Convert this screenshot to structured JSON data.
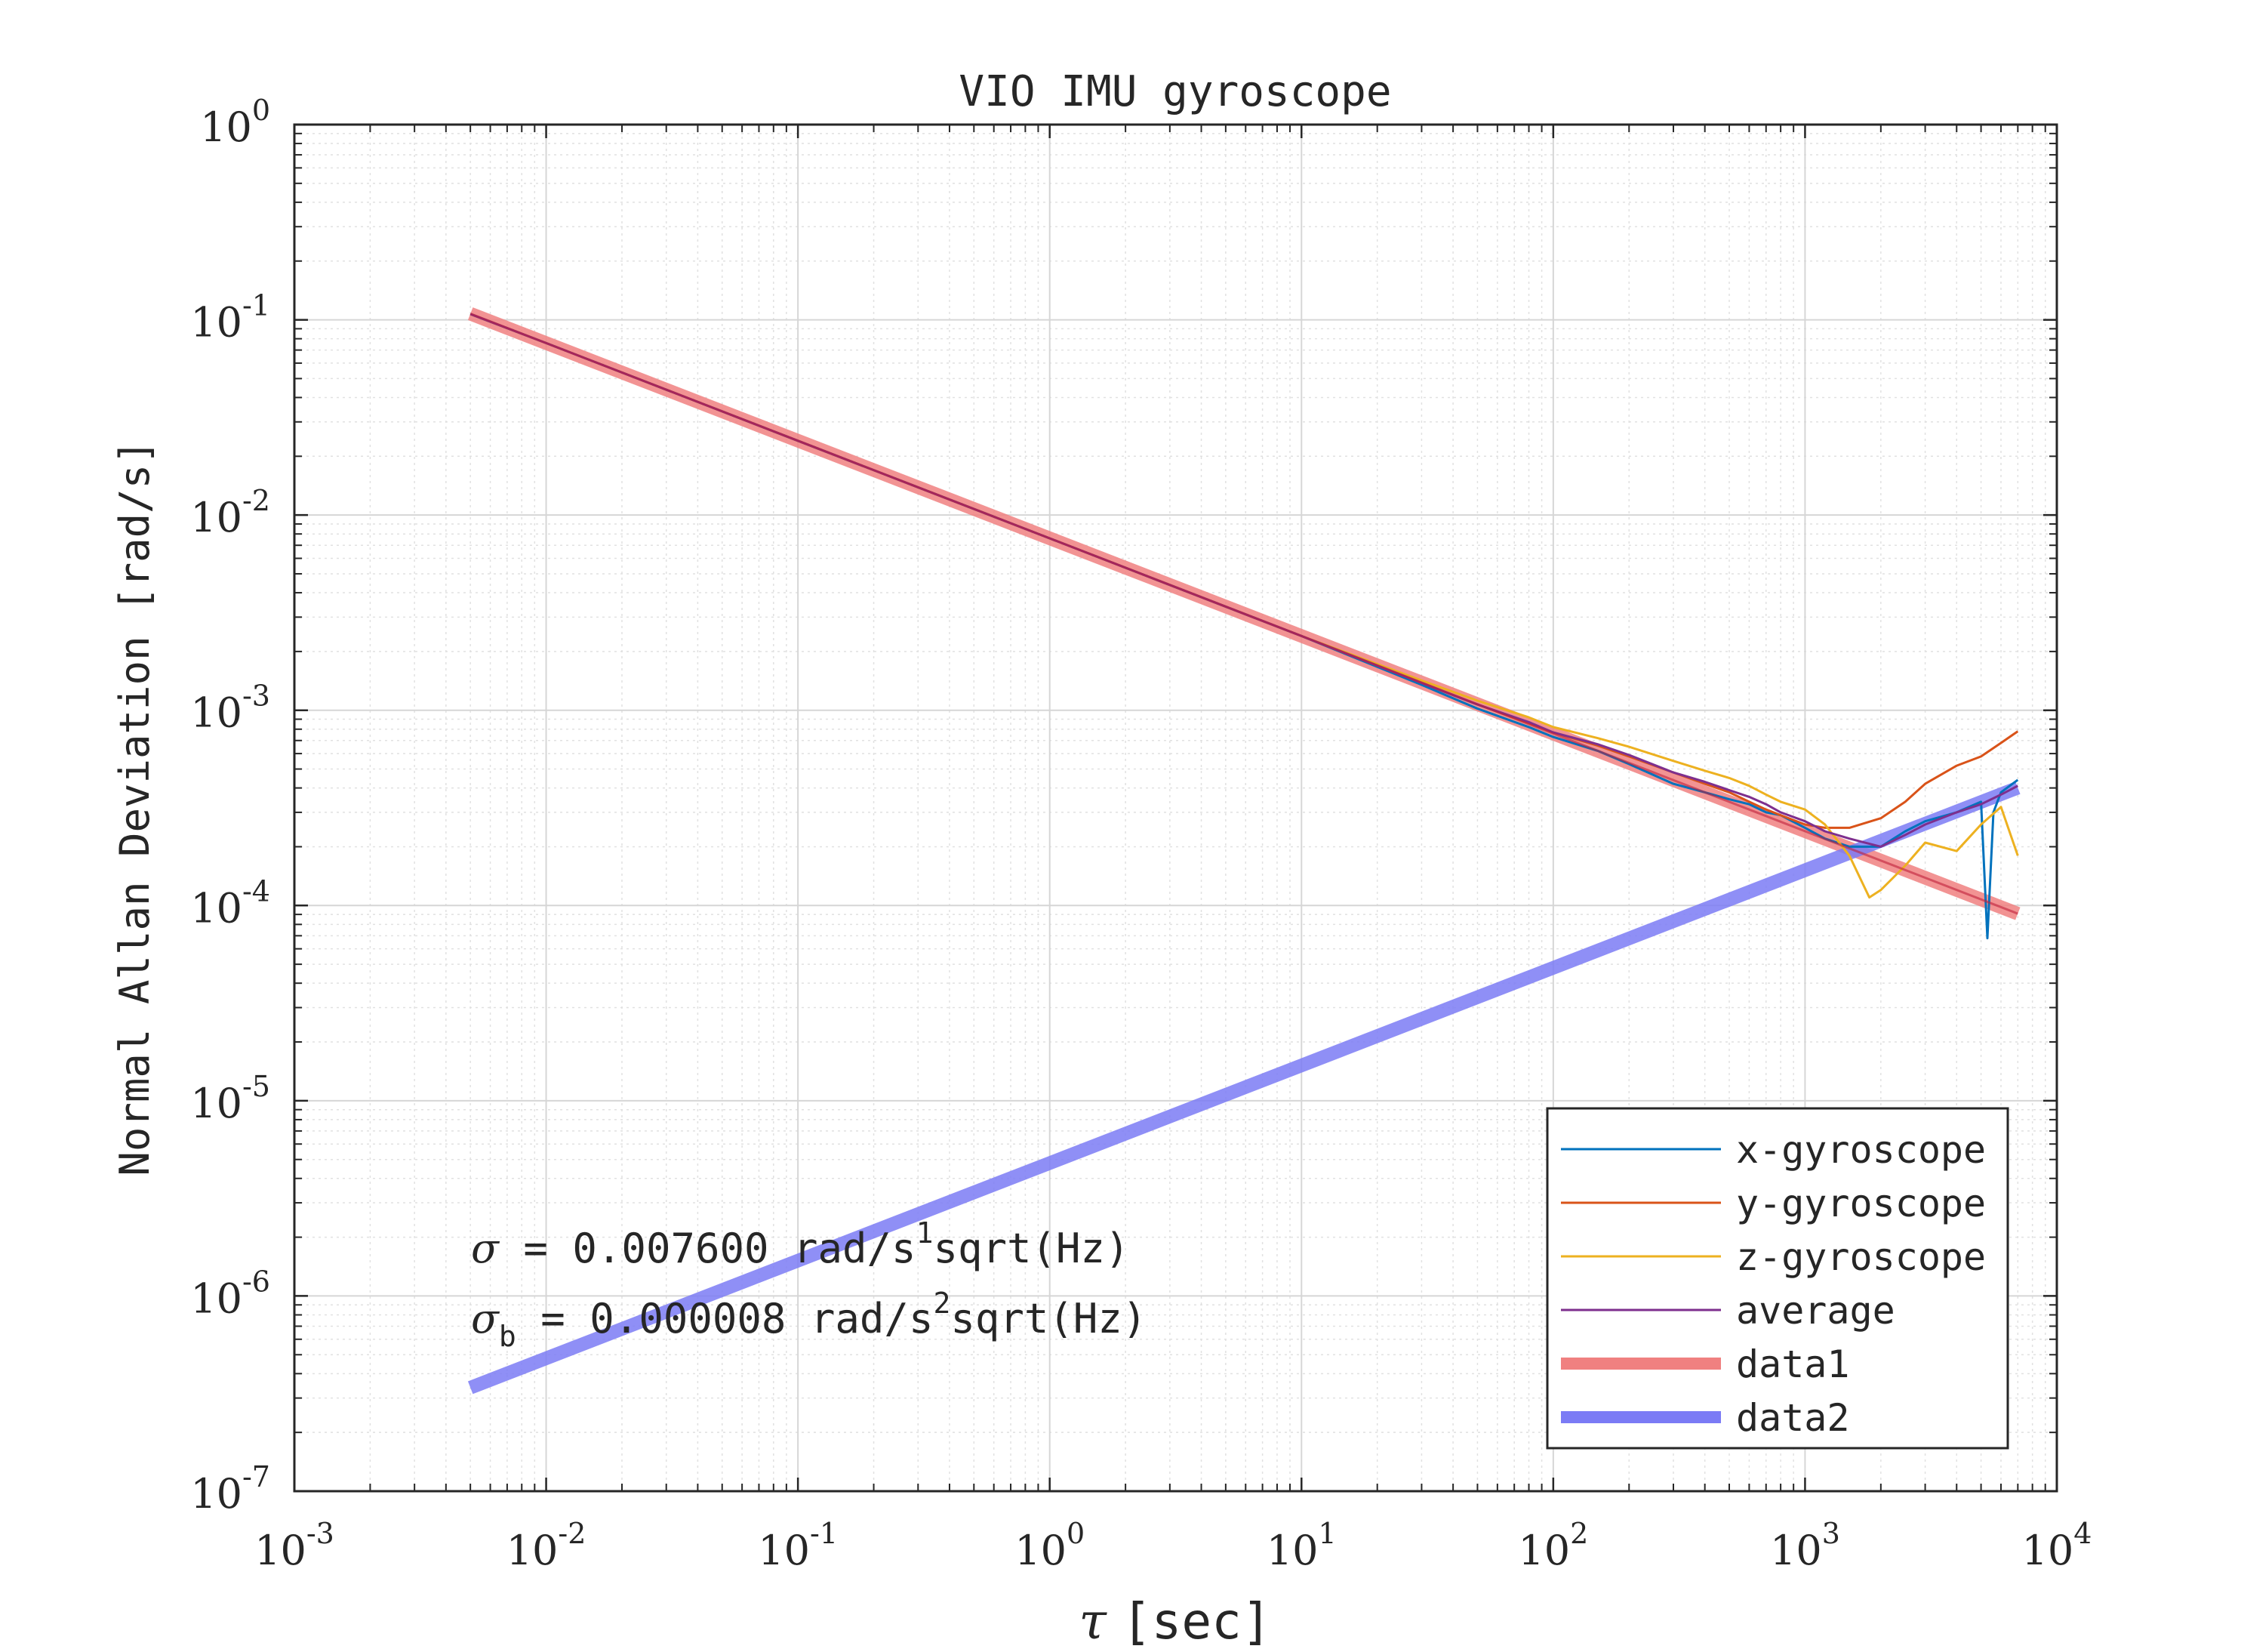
{
  "chart_data": {
    "type": "line",
    "title": "VIO IMU gyroscope",
    "xlabel_symbol": "τ",
    "xlabel_unit": "[sec]",
    "ylabel": "Normal Allan Deviation [rad/s]",
    "xscale": "log",
    "yscale": "log",
    "xlim": [
      0.001,
      10000
    ],
    "ylim": [
      1e-07,
      1
    ],
    "grid": true,
    "minor_grid": true,
    "legend_position": "bottom-right",
    "x_ticks": [
      {
        "base": "10",
        "exp": "-3",
        "value": 0.001
      },
      {
        "base": "10",
        "exp": "-2",
        "value": 0.01
      },
      {
        "base": "10",
        "exp": "-1",
        "value": 0.1
      },
      {
        "base": "10",
        "exp": "0",
        "value": 1
      },
      {
        "base": "10",
        "exp": "1",
        "value": 10
      },
      {
        "base": "10",
        "exp": "2",
        "value": 100
      },
      {
        "base": "10",
        "exp": "3",
        "value": 1000
      },
      {
        "base": "10",
        "exp": "4",
        "value": 10000
      }
    ],
    "y_ticks": [
      {
        "base": "10",
        "exp": "-7",
        "value": 1e-07
      },
      {
        "base": "10",
        "exp": "-6",
        "value": 1e-06
      },
      {
        "base": "10",
        "exp": "-5",
        "value": 1e-05
      },
      {
        "base": "10",
        "exp": "-4",
        "value": 0.0001
      },
      {
        "base": "10",
        "exp": "-3",
        "value": 0.001
      },
      {
        "base": "10",
        "exp": "-2",
        "value": 0.01
      },
      {
        "base": "10",
        "exp": "-1",
        "value": 0.1
      },
      {
        "base": "10",
        "exp": "0",
        "value": 1
      }
    ],
    "series": [
      {
        "name": "x-gyroscope",
        "color": "#0072BD",
        "width": "thin",
        "x": [
          0.005,
          0.01,
          0.1,
          1,
          10,
          30,
          50,
          80,
          100,
          150,
          200,
          300,
          400,
          500,
          600,
          700,
          800,
          1000,
          1200,
          1500,
          2000,
          2500,
          3000,
          4000,
          5000,
          5300,
          5600,
          6000,
          7000
        ],
        "y": [
          0.107,
          0.076,
          0.024,
          0.0076,
          0.0024,
          0.00135,
          0.00102,
          0.00082,
          0.00073,
          0.00062,
          0.00053,
          0.00042,
          0.00038,
          0.00035,
          0.00033,
          0.0003,
          0.00029,
          0.00025,
          0.00022,
          0.0002,
          0.0002,
          0.00024,
          0.00027,
          0.0003,
          0.00034,
          6.8e-05,
          0.0003,
          0.00038,
          0.00044
        ]
      },
      {
        "name": "y-gyroscope",
        "color": "#D95319",
        "width": "thin",
        "x": [
          0.005,
          0.01,
          0.1,
          1,
          10,
          30,
          50,
          80,
          100,
          150,
          200,
          300,
          400,
          500,
          600,
          700,
          800,
          1000,
          1200,
          1500,
          2000,
          2500,
          3000,
          4000,
          5000,
          6000,
          7000
        ],
        "y": [
          0.107,
          0.076,
          0.024,
          0.0076,
          0.0024,
          0.00138,
          0.00107,
          0.00086,
          0.00077,
          0.00066,
          0.00058,
          0.00048,
          0.00042,
          0.00038,
          0.00034,
          0.00031,
          0.00029,
          0.00026,
          0.00025,
          0.00025,
          0.00028,
          0.00034,
          0.00042,
          0.00052,
          0.00058,
          0.00068,
          0.00078
        ]
      },
      {
        "name": "z-gyroscope",
        "color": "#EDB120",
        "width": "thin",
        "x": [
          0.005,
          0.01,
          0.1,
          1,
          10,
          30,
          50,
          80,
          100,
          150,
          200,
          300,
          400,
          500,
          600,
          700,
          800,
          1000,
          1200,
          1500,
          1800,
          2000,
          2500,
          3000,
          4000,
          5000,
          6000,
          7000
        ],
        "y": [
          0.107,
          0.076,
          0.024,
          0.0076,
          0.0024,
          0.00142,
          0.00112,
          0.00092,
          0.00082,
          0.00072,
          0.00065,
          0.00055,
          0.00049,
          0.00045,
          0.00041,
          0.00037,
          0.00034,
          0.00031,
          0.00026,
          0.00018,
          0.00011,
          0.00012,
          0.00016,
          0.00021,
          0.00019,
          0.00026,
          0.00032,
          0.00018
        ]
      },
      {
        "name": "average",
        "color": "#7E2F8E",
        "width": "thin",
        "x": [
          0.005,
          0.01,
          0.1,
          1,
          10,
          30,
          50,
          80,
          100,
          150,
          200,
          300,
          400,
          500,
          600,
          700,
          800,
          1000,
          1200,
          1500,
          2000,
          2500,
          3000,
          4000,
          5000,
          6000,
          7000
        ],
        "y": [
          0.107,
          0.076,
          0.024,
          0.0076,
          0.0024,
          0.00138,
          0.00107,
          0.00087,
          0.00077,
          0.00067,
          0.00059,
          0.00048,
          0.00043,
          0.00039,
          0.00036,
          0.00033,
          0.0003,
          0.00027,
          0.00024,
          0.00022,
          0.0002,
          0.00023,
          0.00026,
          0.0003,
          0.00033,
          0.00037,
          0.00041
        ]
      },
      {
        "name": "data1",
        "color": "#F08080",
        "width": "thick",
        "x": [
          0.005,
          7000
        ],
        "y": [
          0.1075,
          9.08e-05
        ]
      },
      {
        "name": "data2",
        "color": "#7B7BF5",
        "width": "thick",
        "x": [
          0.005,
          7000
        ],
        "y": [
          3.39e-07,
          0.000401
        ]
      }
    ],
    "annotations": {
      "sigma_symbol": "σ",
      "sigma_text": " = 0.007600 rad/s",
      "sigma_sup": "1",
      "sigma_tail": "sqrt(Hz)",
      "sigmab_symbol": "σ",
      "sigmab_sub": "b",
      "sigmab_text": " = 0.000008 rad/s",
      "sigmab_sup": "2",
      "sigmab_tail": "sqrt(Hz)"
    }
  }
}
